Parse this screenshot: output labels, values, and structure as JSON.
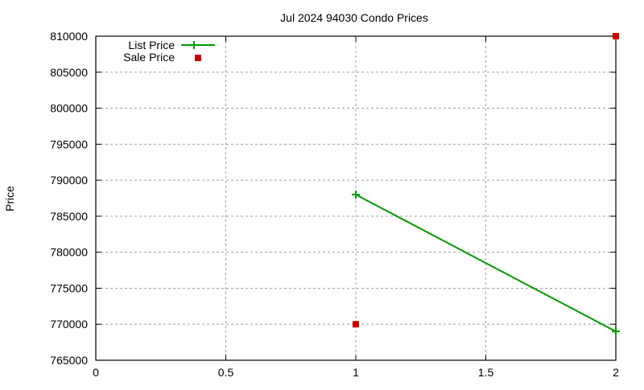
{
  "chart_data": {
    "type": "line",
    "title": "Jul 2024 94030 Condo Prices",
    "xlabel": "",
    "ylabel": "Price",
    "xlim": [
      0,
      2
    ],
    "ylim": [
      765000,
      810000
    ],
    "x_ticks": [
      "0",
      "0.5",
      "1",
      "1.5",
      "2"
    ],
    "y_ticks": [
      "765000",
      "770000",
      "775000",
      "780000",
      "785000",
      "790000",
      "795000",
      "800000",
      "805000",
      "810000"
    ],
    "grid": true,
    "legend_position": "top-left",
    "series": [
      {
        "name": "List Price",
        "style": "linespoints",
        "color": "#009900",
        "x": [
          1,
          2
        ],
        "values": [
          788000,
          769000
        ]
      },
      {
        "name": "Sale Price",
        "style": "points",
        "color": "#cc0000",
        "x": [
          1,
          2
        ],
        "values": [
          770000,
          810000
        ]
      }
    ]
  }
}
